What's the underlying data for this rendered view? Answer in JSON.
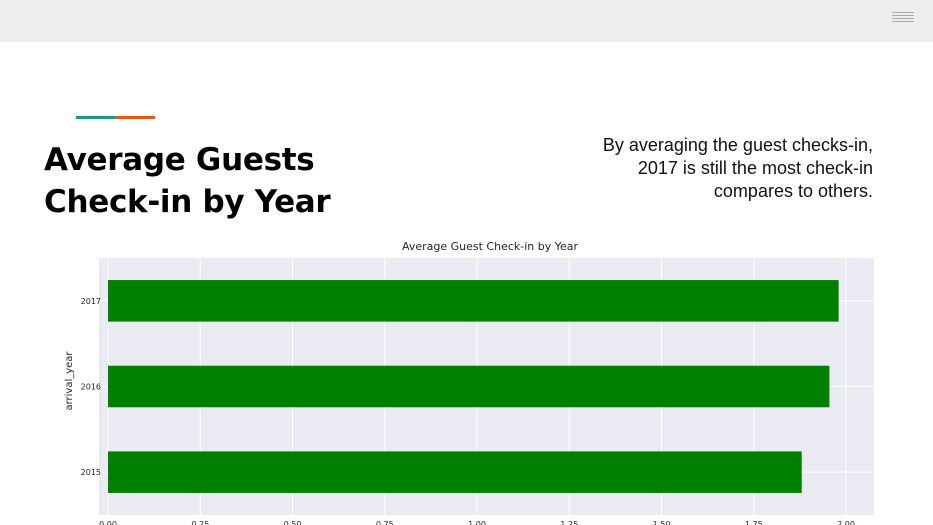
{
  "header": {
    "menu_icon": "hamburger-menu-icon"
  },
  "colors": {
    "teal": "#1f9a8a",
    "orange": "#e8590c",
    "bar": "#008000",
    "plot_bg": "#eaeaf2",
    "grid": "#ffffff"
  },
  "slide": {
    "title_line1": "Average Guests",
    "title_line2": "Check-in by Year",
    "description": "By averaging the guest checks-in, 2017 is still the most check-in compares to others."
  },
  "chart_data": {
    "type": "bar",
    "orientation": "horizontal",
    "title": "Average Guest Check-in by Year",
    "xlabel": "",
    "ylabel": "arrival_year",
    "categories": [
      "2015",
      "2016",
      "2017"
    ],
    "values": [
      1.88,
      1.955,
      1.98
    ],
    "xlim": [
      0,
      2.07
    ],
    "xticks": [
      "0.00",
      "0.25",
      "0.50",
      "0.75",
      "1.00",
      "1.25",
      "1.50",
      "1.75",
      "2.00"
    ],
    "grid": true,
    "legend": "none"
  }
}
